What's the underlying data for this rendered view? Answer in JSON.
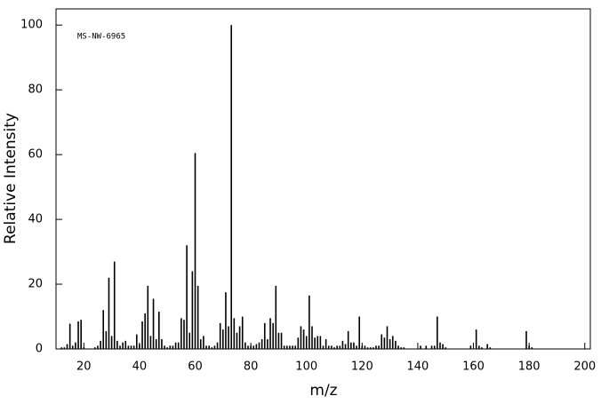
{
  "chart_data": {
    "type": "stem",
    "annotation": "MS-NW-6965",
    "x_label": "m/z",
    "y_label": "Relative Intensity",
    "color": "#000000",
    "x": [
      12,
      13,
      14,
      15,
      16,
      17,
      18,
      19,
      20,
      24,
      25,
      26,
      27,
      28,
      29,
      30,
      31,
      32,
      33,
      34,
      35,
      36,
      37,
      38,
      39,
      40,
      41,
      42,
      43,
      44,
      45,
      46,
      47,
      48,
      49,
      50,
      51,
      52,
      53,
      54,
      55,
      56,
      57,
      58,
      59,
      60,
      61,
      62,
      63,
      64,
      65,
      66,
      67,
      68,
      69,
      70,
      71,
      72,
      73,
      74,
      75,
      76,
      77,
      78,
      79,
      80,
      81,
      82,
      83,
      84,
      85,
      86,
      87,
      88,
      89,
      90,
      91,
      92,
      93,
      94,
      95,
      96,
      97,
      98,
      99,
      100,
      101,
      102,
      103,
      104,
      105,
      106,
      107,
      108,
      109,
      110,
      111,
      112,
      113,
      114,
      115,
      116,
      117,
      118,
      119,
      120,
      121,
      122,
      123,
      124,
      125,
      126,
      127,
      128,
      129,
      130,
      131,
      132,
      133,
      134,
      135,
      141,
      143,
      145,
      146,
      147,
      148,
      149,
      150,
      159,
      161,
      162,
      163,
      165,
      166,
      179,
      180,
      181
    ],
    "values": [
      0.5,
      0.5,
      1.5,
      7.8,
      1,
      2,
      8.5,
      9,
      0.5,
      0.5,
      1,
      2.5,
      12,
      5.5,
      22,
      4,
      27,
      2.5,
      1,
      2,
      2.5,
      1,
      1,
      1,
      4.5,
      1.5,
      8.5,
      11,
      19.5,
      4,
      15.5,
      3,
      11.5,
      3,
      1,
      0.5,
      1,
      1,
      2,
      2,
      9.5,
      9,
      32,
      5,
      24,
      60.5,
      19.5,
      3,
      4,
      1,
      1,
      0.5,
      1,
      2,
      8,
      6,
      17.5,
      7,
      100,
      9.5,
      5,
      7,
      10,
      2,
      1,
      1,
      1,
      1.5,
      2,
      3,
      8,
      3,
      9.5,
      8,
      19.5,
      5,
      5,
      1,
      1,
      1,
      1,
      1,
      3.5,
      7,
      6,
      4,
      16.5,
      7,
      3.5,
      4,
      4,
      1,
      3,
      1,
      1,
      0.5,
      1,
      1,
      2.5,
      1.5,
      5.5,
      2,
      2,
      1,
      10,
      1,
      1,
      0.5,
      0.5,
      0.5,
      1,
      1,
      4.5,
      3.5,
      7,
      3,
      4,
      2.5,
      1,
      0.5,
      0.5,
      1,
      1,
      1,
      1,
      10,
      2,
      1.5,
      0.5,
      1,
      6,
      1,
      0.5,
      1.5,
      0.5,
      5.5,
      1,
      0.5
    ],
    "xlim": [
      10,
      202
    ],
    "xticks": [
      20,
      40,
      60,
      80,
      100,
      120,
      140,
      160,
      180,
      200
    ],
    "ylim": [
      0,
      105
    ],
    "yticks": [
      0,
      20,
      40,
      60,
      80,
      100
    ]
  }
}
